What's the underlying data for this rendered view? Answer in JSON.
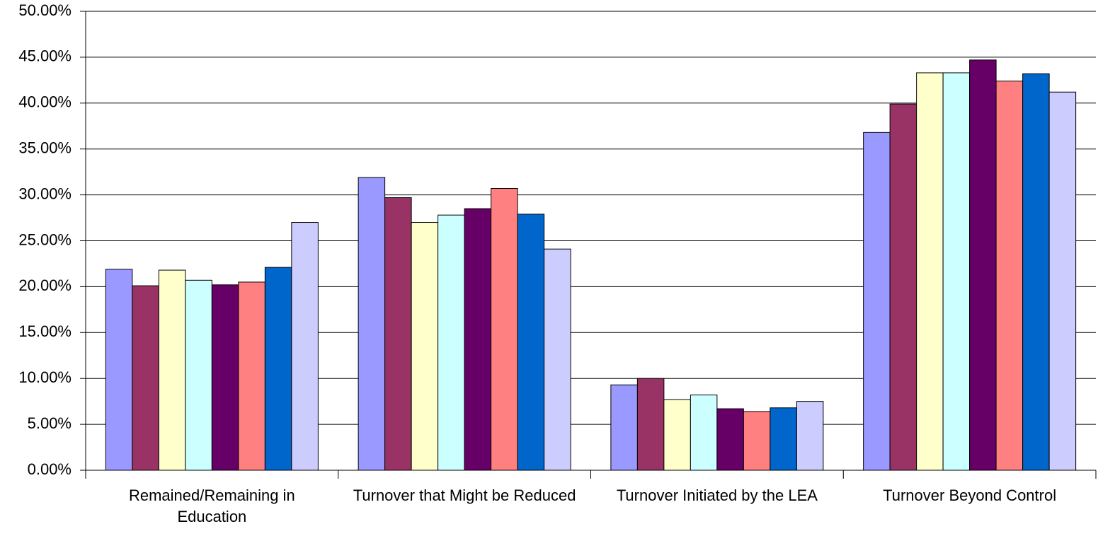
{
  "chart_data": {
    "type": "bar",
    "categories": [
      "Remained/Remaining in Education",
      "Turnover that Might be Reduced",
      "Turnover Initiated by the LEA",
      "Turnover Beyond Control"
    ],
    "series": [
      {
        "color": "#9999ff",
        "values": [
          21.9,
          31.9,
          9.3,
          36.8
        ]
      },
      {
        "color": "#993366",
        "values": [
          20.1,
          29.7,
          10.0,
          39.9
        ]
      },
      {
        "color": "#ffffcc",
        "values": [
          21.8,
          27.0,
          7.7,
          43.3
        ]
      },
      {
        "color": "#ccffff",
        "values": [
          20.7,
          27.8,
          8.2,
          43.3
        ]
      },
      {
        "color": "#660066",
        "values": [
          20.2,
          28.5,
          6.7,
          44.7
        ]
      },
      {
        "color": "#ff8080",
        "values": [
          20.5,
          30.7,
          6.4,
          42.4
        ]
      },
      {
        "color": "#0066cc",
        "values": [
          22.1,
          27.9,
          6.8,
          43.2
        ]
      },
      {
        "color": "#ccccff",
        "values": [
          27.0,
          24.1,
          7.5,
          41.2
        ]
      }
    ],
    "ylim": [
      0,
      50
    ],
    "yticks": [
      {
        "value": 0,
        "label": "0.00%"
      },
      {
        "value": 5,
        "label": "5.00%"
      },
      {
        "value": 10,
        "label": "10.00%"
      },
      {
        "value": 15,
        "label": "15.00%"
      },
      {
        "value": 20,
        "label": "20.00%"
      },
      {
        "value": 25,
        "label": "25.00%"
      },
      {
        "value": 30,
        "label": "30.00%"
      },
      {
        "value": 35,
        "label": "35.00%"
      },
      {
        "value": 40,
        "label": "40.00%"
      },
      {
        "value": 45,
        "label": "45.00%"
      },
      {
        "value": 50,
        "label": "50.00%"
      }
    ],
    "grid": true
  }
}
